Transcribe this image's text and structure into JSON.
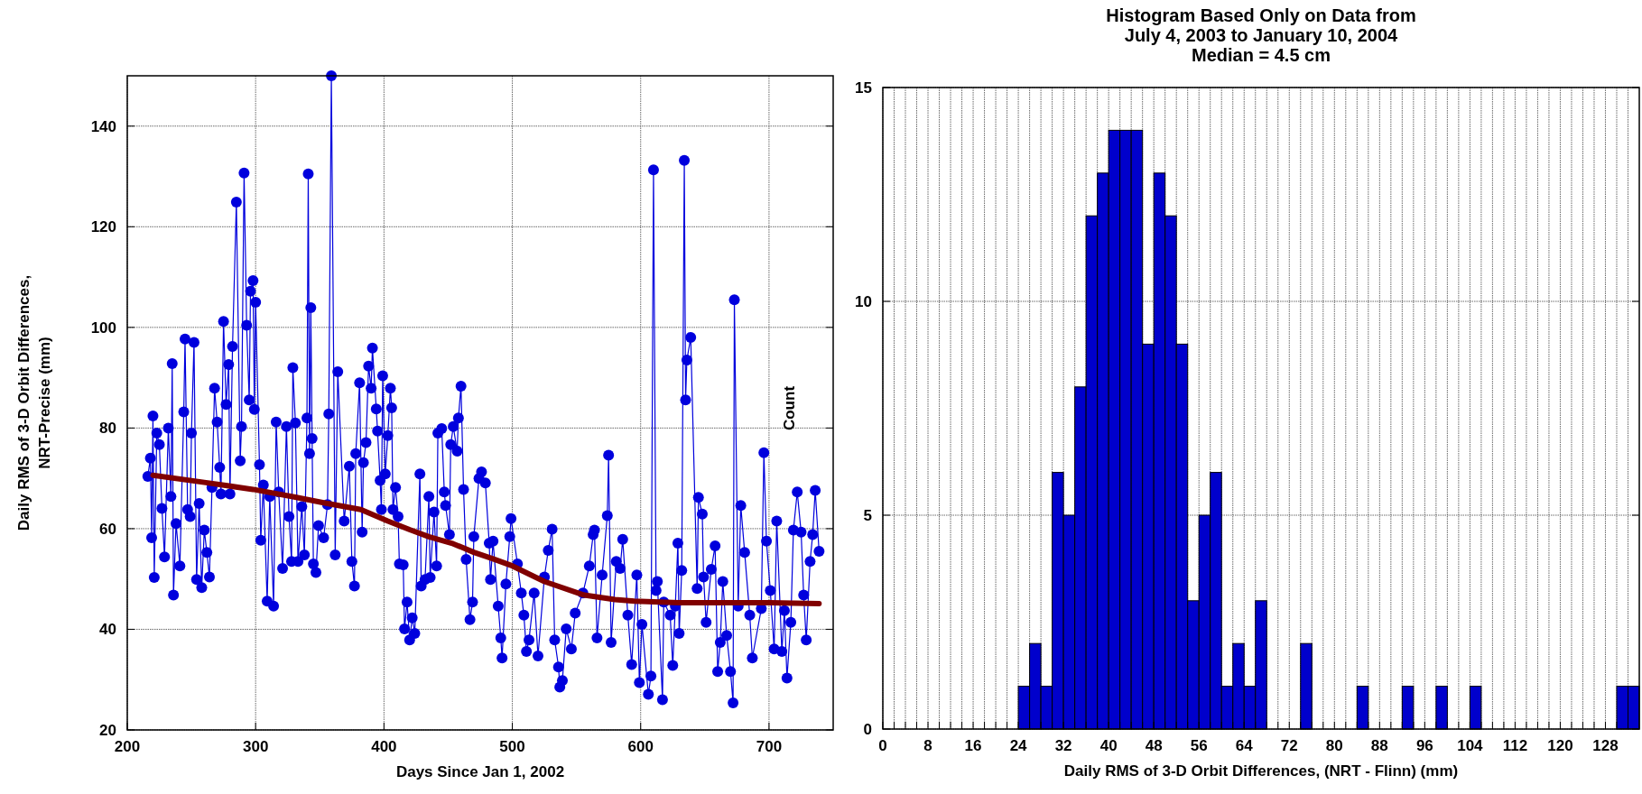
{
  "chart_data": [
    {
      "type": "line",
      "xlabel": "Days Since Jan 1, 2002",
      "ylabel": "Daily RMS of 3-D Orbit Differences,\nNRT-Precise (mm)",
      "xlim": [
        200,
        750
      ],
      "ylim": [
        20,
        150
      ],
      "xticks": [
        200,
        300,
        400,
        500,
        600,
        700
      ],
      "yticks": [
        20,
        40,
        60,
        80,
        100,
        120,
        140
      ],
      "grid": true,
      "marker": "circle",
      "series": [
        {
          "color": "#0000dd",
          "x": [
            216,
            218,
            219,
            220,
            221,
            223,
            225,
            227,
            229,
            232,
            234,
            235,
            236,
            238,
            241,
            244,
            245,
            247,
            249,
            250,
            252,
            254,
            256,
            258,
            260,
            262,
            264,
            266,
            268,
            270,
            272,
            273,
            275,
            277,
            279,
            280,
            282,
            285,
            288,
            289,
            291,
            293,
            295,
            296,
            298,
            299,
            300,
            303,
            304,
            306,
            309,
            311,
            314,
            316,
            318,
            321,
            324,
            326,
            328,
            329,
            331,
            333,
            336,
            338,
            340,
            341,
            342,
            343,
            344,
            345,
            347,
            349,
            353,
            356,
            357,
            359,
            362,
            364,
            369,
            373,
            375,
            377,
            378,
            381,
            383,
            384,
            386,
            388,
            390,
            391,
            394,
            395,
            397,
            398,
            399,
            401,
            403,
            405,
            406,
            407,
            409,
            411,
            412,
            415,
            416,
            418,
            420,
            422,
            424,
            428,
            429,
            432,
            435,
            436,
            439,
            441,
            442,
            445,
            447,
            448,
            451,
            452,
            454,
            457,
            458,
            460,
            462,
            464,
            467,
            469,
            470,
            474,
            476,
            479,
            482,
            483,
            485,
            489,
            491,
            492,
            495,
            498,
            499,
            504,
            507,
            509,
            511,
            513,
            517,
            520,
            525,
            528,
            531,
            533,
            536,
            537,
            539,
            542,
            546,
            549,
            555,
            560,
            563,
            564,
            566,
            570,
            574,
            575,
            577,
            581,
            584,
            586,
            590,
            593,
            597,
            599,
            601,
            606,
            608,
            610,
            612,
            613,
            617,
            618,
            623,
            625,
            627,
            629,
            630,
            632,
            634,
            635,
            636,
            639,
            644,
            645,
            648,
            649,
            651,
            655,
            658,
            660,
            662,
            664,
            667,
            670,
            672,
            673,
            676,
            678,
            681,
            685,
            687,
            694,
            696,
            698,
            701,
            704,
            706,
            710,
            712,
            714,
            717,
            719,
            722,
            725,
            727,
            729,
            732,
            734,
            736,
            739
          ],
          "values": [
            70.4,
            74,
            58.2,
            82.4,
            50.3,
            79,
            76.7,
            64,
            54.4,
            80,
            66.4,
            92.8,
            46.8,
            61,
            52.6,
            83.2,
            97.7,
            63.8,
            62.4,
            79,
            97,
            49.9,
            65,
            48.3,
            59.7,
            55.3,
            50.4,
            68.2,
            87.9,
            81.2,
            72.2,
            66.9,
            101.2,
            84.7,
            92.6,
            66.9,
            96.2,
            124.9,
            73.5,
            80.3,
            130.7,
            100.4,
            85.6,
            107.2,
            109.3,
            83.7,
            105,
            72.7,
            57.7,
            68.7,
            45.6,
            66.4,
            44.6,
            81.2,
            67.3,
            52.1,
            80.3,
            62.4,
            53.5,
            92,
            81,
            53.5,
            64.4,
            54.8,
            82,
            130.5,
            74.9,
            103.9,
            77.9,
            53,
            51.3,
            60.6,
            58.2,
            64.8,
            82.8,
            150,
            54.8,
            91.2,
            61.5,
            72.4,
            53.5,
            48.6,
            74.9,
            89,
            59.3,
            73.1,
            77.1,
            92.3,
            87.9,
            95.9,
            83.8,
            79.4,
            69.6,
            63.8,
            90.4,
            70.9,
            78.5,
            87.9,
            84,
            63.8,
            68.2,
            62.4,
            53,
            52.8,
            40.1,
            45.4,
            37.9,
            42.3,
            39.2,
            70.9,
            48.6,
            49.9,
            66.4,
            50.3,
            63.3,
            52.6,
            79,
            79.9,
            67.3,
            64.6,
            58.8,
            76.7,
            80.3,
            75.4,
            82,
            88.3,
            67.8,
            53.9,
            41.9,
            45.4,
            58.4,
            70,
            71.3,
            69.1,
            57.1,
            49.9,
            57.5,
            44.6,
            38.3,
            34.3,
            49,
            58.4,
            62,
            53,
            47.2,
            42.8,
            35.6,
            37.9,
            47.2,
            34.7,
            50.4,
            55.7,
            59.9,
            37.9,
            32.5,
            28.5,
            29.8,
            40.1,
            36.1,
            43.2,
            47.2,
            52.6,
            58.8,
            59.7,
            38.3,
            50.8,
            62.6,
            74.6,
            37.4,
            53.5,
            52.1,
            57.9,
            42.8,
            33,
            50.8,
            29.4,
            41,
            27.1,
            30.7,
            131.3,
            47.7,
            49.5,
            26,
            45.4,
            42.8,
            32.8,
            44.6,
            57.1,
            39.2,
            51.7,
            133.2,
            85.6,
            93.5,
            98,
            48.1,
            66.2,
            62.9,
            50.4,
            41.4,
            51.9,
            56.6,
            31.6,
            37.4,
            49.5,
            38.8,
            31.6,
            25.4,
            105.5,
            44.6,
            64.6,
            55.3,
            42.8,
            34.3,
            44.1,
            75.1,
            57.5,
            47.7,
            36.1,
            61.5,
            35.6,
            43.7,
            30.3,
            41.4,
            59.7,
            67.3,
            59.3,
            46.8,
            37.9,
            53.5,
            58.8,
            67.6,
            55.5
          ]
        },
        {
          "color": "#800000",
          "marker": "none",
          "x": [
            220,
            260,
            298,
            330,
            354,
            382,
            403,
            420,
            435,
            454,
            470,
            485,
            500,
            525,
            556,
            580,
            595,
            630,
            701,
            739
          ],
          "values": [
            70.6,
            69.2,
            67.8,
            66.3,
            65.1,
            63.8,
            61.5,
            59.8,
            58.4,
            57,
            55.3,
            54,
            52.6,
            49.5,
            46.8,
            45.9,
            45.6,
            45.3,
            45.3,
            45.1
          ]
        }
      ]
    },
    {
      "type": "histogram",
      "title": "Histogram Based Only on Data from\nJuly 4, 2003 to January 10, 2004\nMedian = 4.5 cm",
      "xlabel": "Daily RMS of 3-D Orbit Differences, (NRT - Flinn) (mm)",
      "ylabel": "Count",
      "color": "#0000cc",
      "bins": [
        0,
        2,
        4,
        6,
        8,
        10,
        12,
        14,
        16,
        18,
        20,
        22,
        24,
        26,
        28,
        30,
        32,
        34,
        36,
        38,
        40,
        42,
        44,
        46,
        48,
        50,
        52,
        54,
        56,
        58,
        60,
        62,
        64,
        66,
        68,
        70,
        72,
        74,
        76,
        78,
        80,
        82,
        84,
        86,
        88,
        90,
        92,
        94,
        96,
        98,
        100,
        102,
        104,
        106,
        108,
        110,
        112,
        114,
        116,
        118,
        120,
        122,
        124,
        126,
        128,
        130,
        132,
        134
      ],
      "values": [
        0,
        0,
        0,
        0,
        0,
        0,
        0,
        0,
        0,
        0,
        0,
        0,
        1,
        2,
        1,
        6,
        5,
        8,
        12,
        13,
        14,
        14,
        14,
        9,
        13,
        12,
        9,
        3,
        5,
        6,
        1,
        2,
        1,
        3,
        0,
        0,
        0,
        2,
        0,
        0,
        0,
        0,
        1,
        0,
        0,
        0,
        1,
        0,
        0,
        1,
        0,
        0,
        1,
        0,
        0,
        0,
        0,
        0,
        0,
        0,
        0,
        0,
        0,
        0,
        0,
        1,
        1
      ],
      "xlim": [
        0,
        134
      ],
      "ylim": [
        0,
        15
      ],
      "yticks": [
        0,
        5,
        10,
        15
      ],
      "grid": true,
      "xticks": [
        0,
        {
          "value": 2,
          "label": null
        },
        {
          "value": 4,
          "label": null
        },
        {
          "value": 6,
          "label": null
        },
        8,
        {
          "value": 10,
          "label": null
        },
        {
          "value": 12,
          "label": null
        },
        {
          "value": 14,
          "label": null
        },
        16,
        {
          "value": 18,
          "label": null
        },
        {
          "value": 20,
          "label": null
        },
        {
          "value": 22,
          "label": null
        },
        24,
        {
          "value": 26,
          "label": null
        },
        {
          "value": 28,
          "label": null
        },
        {
          "value": 30,
          "label": null
        },
        32,
        {
          "value": 34,
          "label": null
        },
        {
          "value": 36,
          "label": null
        },
        {
          "value": 38,
          "label": null
        },
        40,
        {
          "value": 42,
          "label": null
        },
        {
          "value": 44,
          "label": null
        },
        {
          "value": 46,
          "label": null
        },
        48,
        {
          "value": 50,
          "label": null
        },
        {
          "value": 52,
          "label": null
        },
        {
          "value": 54,
          "label": null
        },
        56,
        {
          "value": 58,
          "label": null
        },
        {
          "value": 60,
          "label": null
        },
        {
          "value": 62,
          "label": null
        },
        64,
        {
          "value": 66,
          "label": null
        },
        {
          "value": 68,
          "label": null
        },
        {
          "value": 70,
          "label": null
        },
        72,
        {
          "value": 74,
          "label": null
        },
        {
          "value": 76,
          "label": null
        },
        {
          "value": 78,
          "label": null
        },
        80,
        {
          "value": 82,
          "label": null
        },
        {
          "value": 84,
          "label": null
        },
        {
          "value": 86,
          "label": null
        },
        88,
        {
          "value": 90,
          "label": null
        },
        {
          "value": 92,
          "label": null
        },
        {
          "value": 94,
          "label": null
        },
        96,
        {
          "value": 98,
          "label": null
        },
        {
          "value": 100,
          "label": null
        },
        {
          "value": 102,
          "label": null
        },
        104,
        {
          "value": 106,
          "label": null
        },
        {
          "value": 108,
          "label": null
        },
        {
          "value": 110,
          "label": null
        },
        112,
        {
          "value": 114,
          "label": null
        },
        {
          "value": 116,
          "label": null
        },
        {
          "value": 118,
          "label": null
        },
        120,
        {
          "value": 122,
          "label": null
        },
        {
          "value": 124,
          "label": null
        },
        {
          "value": 126,
          "label": null
        },
        128,
        {
          "value": 130,
          "label": null
        },
        {
          "value": 132,
          "label": null
        }
      ]
    }
  ]
}
